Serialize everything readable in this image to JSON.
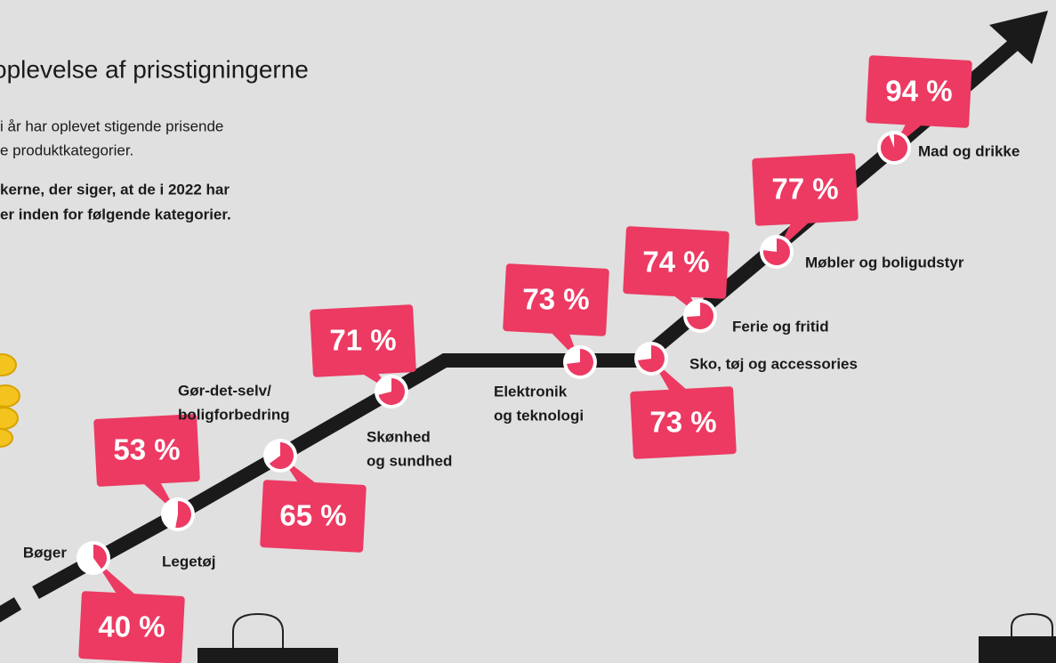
{
  "chart_data": {
    "type": "pie-path",
    "title": "oplevelse af prisstigningerne",
    "subtitle": [
      "i år har oplevet stigende prisende",
      "e produktkategorier."
    ],
    "note": [
      "kerne, der siger, at de i 2022 har",
      "er inden for følgende kategorier."
    ],
    "categories": [
      [
        "Bøger"
      ],
      [
        "Legetøj"
      ],
      [
        "Gør-det-selv/",
        "boligforbedring"
      ],
      [
        "Skønhed",
        "og sundhed"
      ],
      [
        "Elektronik",
        "og teknologi"
      ],
      [
        "Sko, tøj og accessories"
      ],
      [
        "Ferie og fritid"
      ],
      [
        "Møbler og boligudstyr"
      ],
      [
        "Mad og drikke"
      ]
    ],
    "values": [
      40,
      53,
      65,
      71,
      73,
      73,
      74,
      77,
      94
    ],
    "value_labels": [
      "40 %",
      "53 %",
      "65 %",
      "71 %",
      "73 %",
      "73 %",
      "74 %",
      "77 %",
      "94 %"
    ],
    "color": "#ec3a62"
  }
}
